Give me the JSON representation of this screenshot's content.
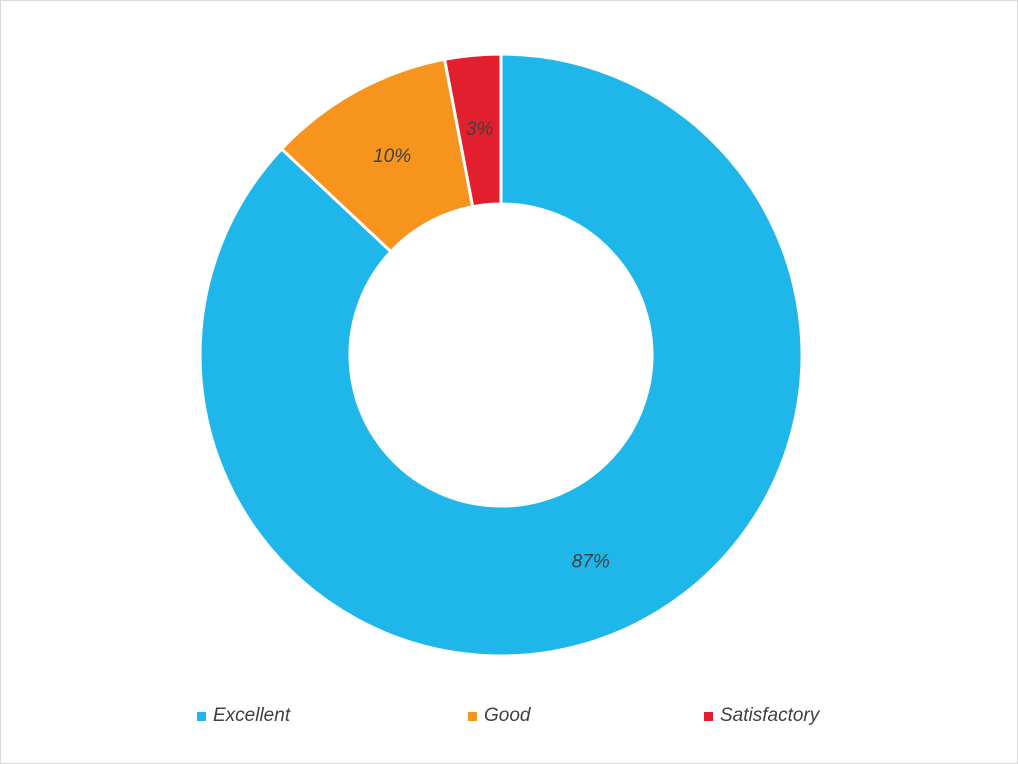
{
  "chart_data": {
    "type": "pie",
    "variant": "donut",
    "title": "",
    "categories": [
      "Excellent",
      "Good",
      "Satisfactory"
    ],
    "values": [
      87,
      10,
      3
    ],
    "value_labels": [
      "87%",
      "10%",
      "3%"
    ],
    "colors": [
      "#1fb7ea",
      "#f7941d",
      "#e11f2f"
    ],
    "legend_placement": "bottom",
    "start_angle_deg": 0,
    "direction": "clockwise"
  }
}
